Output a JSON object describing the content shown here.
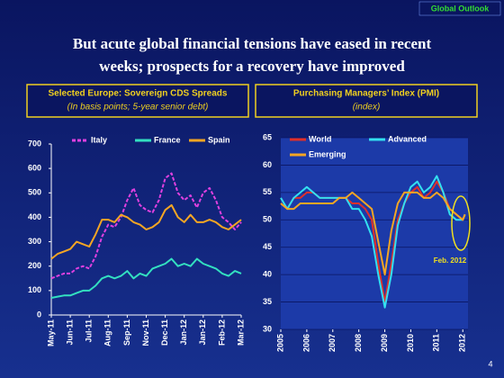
{
  "slide": {
    "header": "Global Outlook",
    "title_lines": [
      "But acute global financial tensions have eased in recent",
      "weeks; prospects for a recovery have improved"
    ],
    "page": 4
  },
  "chart_data": [
    {
      "type": "line",
      "title": "Selected Europe: Sovereign CDS Spreads",
      "subtitle": "(In basis points; 5-year senior debt)",
      "categories": [
        "May-11",
        null,
        null,
        "Jun-11",
        null,
        null,
        "Jul-11",
        null,
        null,
        "Aug-11",
        null,
        null,
        "Sep-11",
        null,
        null,
        "Nov-11",
        null,
        null,
        "Dec-11",
        null,
        null,
        "Jan-12",
        null,
        null,
        "Jan-12",
        null,
        null,
        "Feb-12",
        null,
        null,
        "Mar-12"
      ],
      "series": [
        {
          "name": "Italy",
          "color": "#e040e0",
          "style": "dashed",
          "values": [
            150,
            160,
            170,
            170,
            190,
            200,
            190,
            240,
            320,
            370,
            360,
            400,
            470,
            520,
            450,
            430,
            420,
            470,
            560,
            580,
            500,
            470,
            490,
            440,
            500,
            520,
            470,
            400,
            380,
            350,
            380
          ]
        },
        {
          "name": "France",
          "color": "#33e0c0",
          "values": [
            70,
            75,
            80,
            80,
            90,
            100,
            100,
            120,
            150,
            160,
            150,
            160,
            180,
            150,
            170,
            160,
            190,
            200,
            210,
            230,
            200,
            210,
            200,
            230,
            210,
            200,
            190,
            170,
            160,
            180,
            170
          ]
        },
        {
          "name": "Spain",
          "color": "#f5a623",
          "values": [
            230,
            250,
            260,
            270,
            300,
            290,
            280,
            330,
            390,
            390,
            380,
            410,
            400,
            380,
            370,
            350,
            360,
            380,
            430,
            450,
            400,
            380,
            410,
            380,
            380,
            390,
            380,
            360,
            350,
            370,
            390
          ]
        }
      ],
      "ylim": [
        0,
        700
      ],
      "yticks": [
        0,
        100,
        200,
        300,
        400,
        500,
        600,
        700
      ],
      "grid": false
    },
    {
      "type": "line",
      "title": "Purchasing Managers’ Index (PMI)",
      "subtitle": "(index)",
      "x": [
        2005,
        2005.25,
        2005.5,
        2005.75,
        2006,
        2006.25,
        2006.5,
        2006.75,
        2007,
        2007.25,
        2007.5,
        2007.75,
        2008,
        2008.25,
        2008.5,
        2008.75,
        2009,
        2009.25,
        2009.5,
        2009.75,
        2010,
        2010.25,
        2010.5,
        2010.75,
        2011,
        2011.25,
        2011.5,
        2011.75,
        2012,
        2012.083
      ],
      "series": [
        {
          "name": "World",
          "color": "#e0302a",
          "values": [
            53,
            52,
            54,
            54,
            55,
            55,
            54,
            54,
            54,
            54,
            54,
            53,
            53,
            52,
            50,
            42,
            35,
            42,
            50,
            53,
            55,
            56,
            54,
            55,
            57,
            55,
            52,
            51,
            50,
            51
          ]
        },
        {
          "name": "Advanced",
          "color": "#33e0f0",
          "values": [
            54,
            52,
            54,
            55,
            56,
            55,
            54,
            54,
            54,
            54,
            54,
            52,
            52,
            50,
            47,
            40,
            34,
            40,
            49,
            53,
            56,
            57,
            55,
            56,
            58,
            55,
            51,
            50,
            50,
            51
          ]
        },
        {
          "name": "Emerging",
          "color": "#f5a623",
          "values": [
            53,
            52,
            52,
            53,
            53,
            53,
            53,
            53,
            53,
            54,
            54,
            55,
            54,
            53,
            52,
            46,
            40,
            48,
            53,
            55,
            55,
            55,
            54,
            54,
            55,
            54,
            52,
            51,
            50,
            51
          ]
        }
      ],
      "xlim": [
        2005,
        2012.2
      ],
      "xticks": [
        2005,
        2006,
        2007,
        2008,
        2009,
        2010,
        2011,
        2012
      ],
      "ylim": [
        30,
        65
      ],
      "yticks": [
        30,
        35,
        40,
        45,
        50,
        55,
        60,
        65
      ],
      "grid": true,
      "annotation": "Feb. 2012"
    }
  ]
}
